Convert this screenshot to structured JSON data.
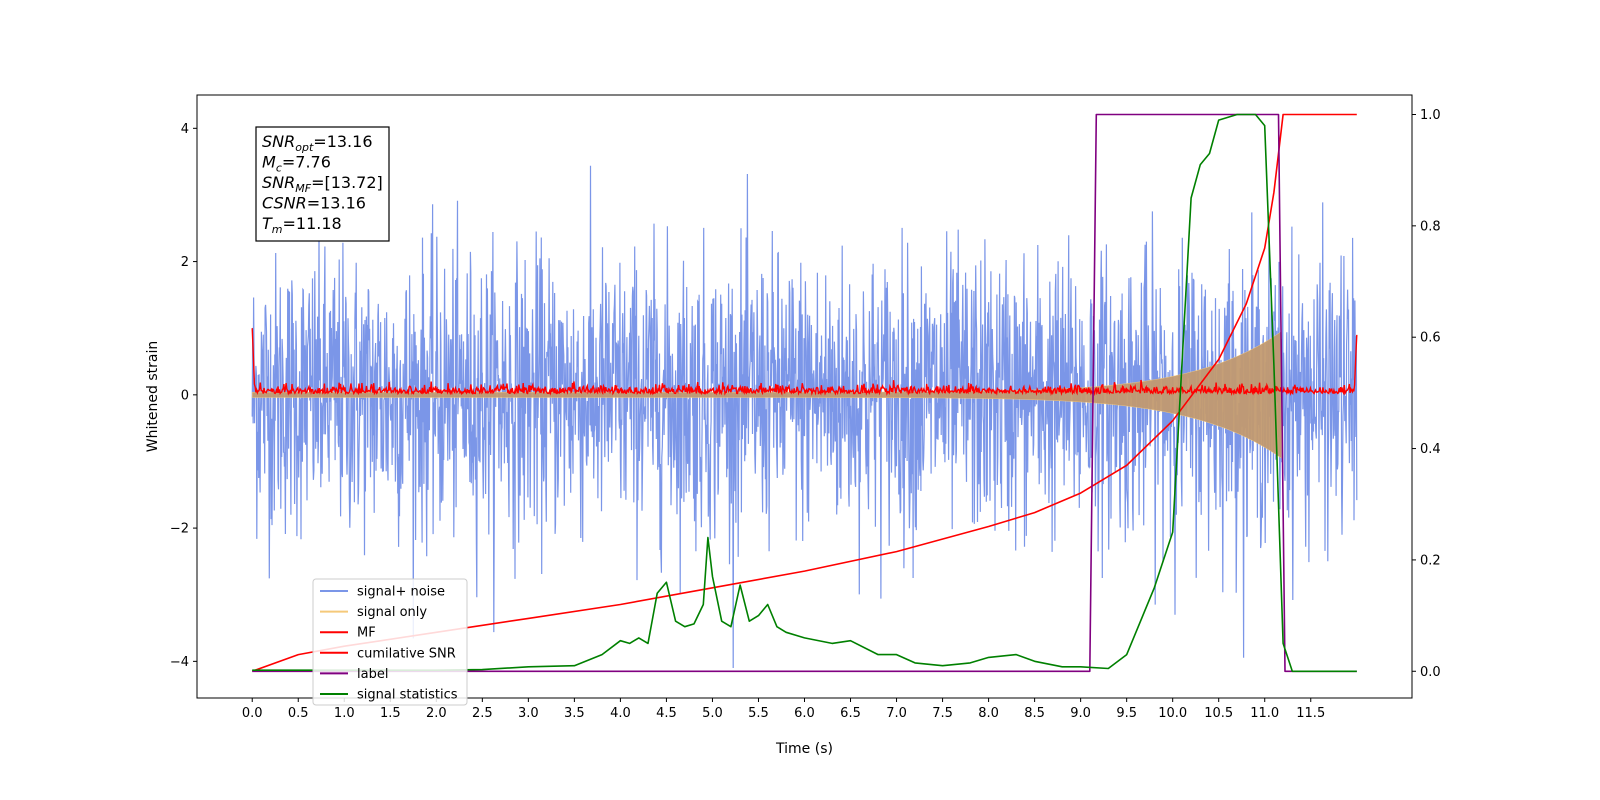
{
  "chart_data": {
    "type": "line",
    "xlabel": "Time (s)",
    "ylabel": "Whitened strain",
    "xlim": [
      -0.6,
      12.6
    ],
    "ylim": [
      -4.55,
      4.5
    ],
    "ylim_right": [
      -0.048,
      1.035
    ],
    "grid": false,
    "legend_position": "lower-left",
    "x_ticks": [
      "0.0",
      "0.5",
      "1.0",
      "1.5",
      "2.0",
      "2.5",
      "3.0",
      "3.5",
      "4.0",
      "4.5",
      "5.0",
      "5.5",
      "6.0",
      "6.5",
      "7.0",
      "7.5",
      "8.0",
      "8.5",
      "9.0",
      "9.5",
      "10.0",
      "10.5",
      "11.0",
      "11.5"
    ],
    "y_ticks": [
      "−4",
      "−2",
      "0",
      "2",
      "4"
    ],
    "y_ticks_right": [
      "0.0",
      "0.2",
      "0.4",
      "0.6",
      "0.8",
      "1.0"
    ],
    "annotation": {
      "lines": [
        {
          "var": "SNR",
          "sub": "opt",
          "value": "=13.16"
        },
        {
          "var": "M",
          "sub": "c",
          "value": "=7.76"
        },
        {
          "var": "SNR",
          "sub": "MF",
          "value": "=[13.72]"
        },
        {
          "var": "CSNR",
          "sub": "",
          "value": "=13.16"
        },
        {
          "var": "T",
          "sub": "m",
          "value": "=11.18"
        }
      ]
    },
    "series": [
      {
        "name": "signal+ noise",
        "color": "#7b96e8",
        "axis": "left",
        "kind": "gaussian noise plus chirp",
        "noise_sigma": 1.05,
        "x_range": [
          0.0,
          12.0
        ]
      },
      {
        "name": "signal only",
        "color": "#f5c97a",
        "axis": "left",
        "kind": "chirp envelope",
        "envelope_at_0": 0.04,
        "envelope_at_11.18": 0.95,
        "x_range": [
          0.0,
          11.18
        ]
      },
      {
        "name": "MF",
        "color": "#ff0000",
        "axis": "left",
        "kind": "matched-filter output",
        "baseline": 0.05,
        "x_range": [
          0.0,
          12.0
        ]
      },
      {
        "name": "cumilative SNR",
        "color": "#ff0000",
        "axis": "right",
        "x": [
          0.0,
          0.5,
          1.0,
          2.0,
          3.0,
          4.0,
          5.0,
          6.0,
          7.0,
          8.0,
          8.5,
          9.0,
          9.5,
          10.0,
          10.5,
          10.8,
          11.0,
          11.1,
          11.2,
          11.3,
          12.0
        ],
        "y": [
          0.0,
          0.03,
          0.045,
          0.07,
          0.095,
          0.12,
          0.15,
          0.18,
          0.215,
          0.26,
          0.285,
          0.32,
          0.37,
          0.45,
          0.56,
          0.66,
          0.76,
          0.86,
          1.0,
          1.0,
          1.0
        ]
      },
      {
        "name": "label",
        "color": "#800080",
        "axis": "right",
        "x": [
          0.0,
          9.1,
          9.17,
          11.15,
          11.22,
          12.0
        ],
        "y": [
          0.0,
          0.0,
          1.0,
          1.0,
          0.0,
          0.0
        ]
      },
      {
        "name": "signal statistics",
        "color": "#008000",
        "axis": "right",
        "x": [
          0.0,
          1.0,
          2.0,
          2.5,
          3.0,
          3.5,
          3.8,
          4.0,
          4.1,
          4.2,
          4.3,
          4.4,
          4.5,
          4.6,
          4.7,
          4.8,
          4.9,
          4.95,
          5.0,
          5.1,
          5.2,
          5.3,
          5.4,
          5.5,
          5.6,
          5.7,
          5.8,
          6.0,
          6.3,
          6.5,
          6.8,
          7.0,
          7.2,
          7.5,
          7.8,
          8.0,
          8.3,
          8.5,
          8.8,
          9.0,
          9.3,
          9.5,
          9.8,
          10.0,
          10.1,
          10.2,
          10.3,
          10.4,
          10.5,
          10.7,
          10.9,
          11.0,
          11.1,
          11.2,
          11.3,
          11.5,
          12.0
        ],
        "y": [
          0.002,
          0.002,
          0.002,
          0.003,
          0.008,
          0.01,
          0.03,
          0.055,
          0.05,
          0.06,
          0.05,
          0.14,
          0.16,
          0.09,
          0.08,
          0.085,
          0.12,
          0.24,
          0.17,
          0.09,
          0.08,
          0.155,
          0.09,
          0.1,
          0.12,
          0.08,
          0.07,
          0.06,
          0.05,
          0.055,
          0.03,
          0.03,
          0.015,
          0.01,
          0.015,
          0.025,
          0.03,
          0.018,
          0.008,
          0.008,
          0.005,
          0.03,
          0.15,
          0.25,
          0.55,
          0.85,
          0.91,
          0.93,
          0.99,
          1.0,
          1.0,
          0.98,
          0.55,
          0.05,
          0.0,
          0.0,
          0.0
        ]
      }
    ]
  }
}
